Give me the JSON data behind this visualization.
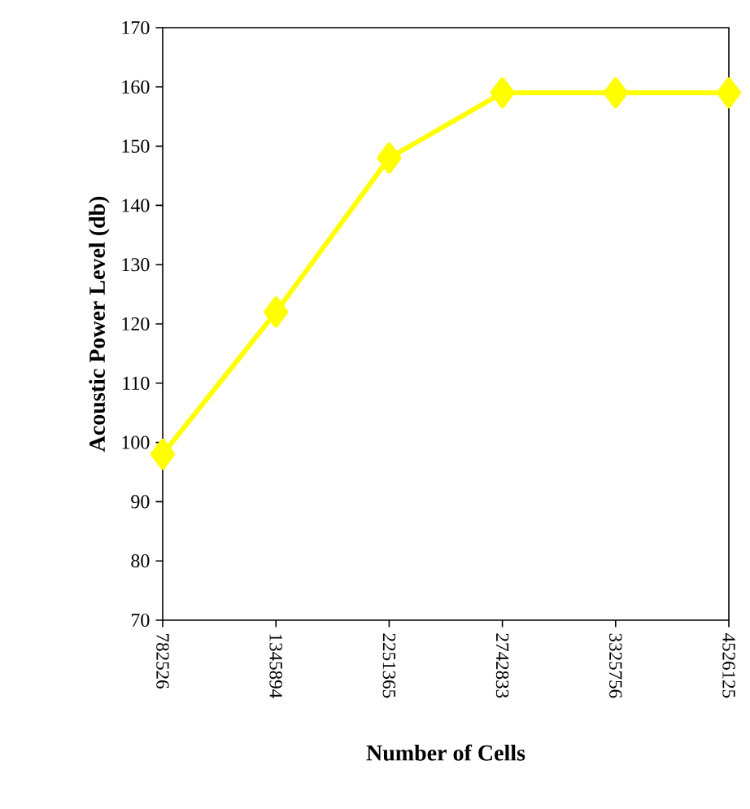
{
  "chart_data": {
    "type": "line",
    "xlabel": "Number of Cells",
    "ylabel": "Acoustic Power Level (db)",
    "categories": [
      "782526",
      "1345894",
      "2251365",
      "2742833",
      "3325756",
      "4526125"
    ],
    "values": [
      98,
      122,
      148,
      159,
      159,
      159
    ],
    "color": "#ffff00",
    "marker": "diamond",
    "line_style": "solid",
    "ylim": [
      70,
      170
    ],
    "yticks": [
      70,
      80,
      90,
      100,
      110,
      120,
      130,
      140,
      150,
      160,
      170
    ]
  }
}
